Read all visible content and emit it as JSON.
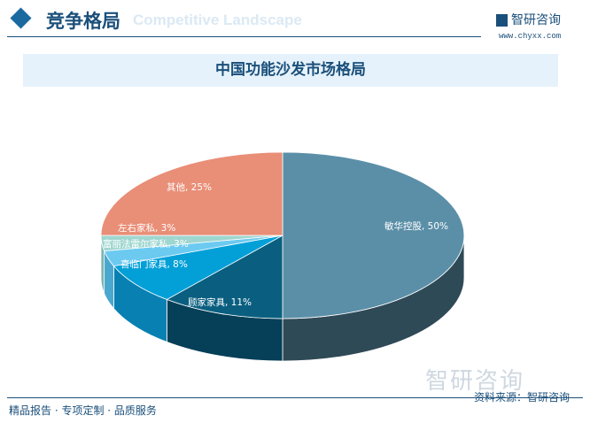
{
  "header": {
    "title": "竞争格局",
    "subtitle_en": "Competitive Landscape",
    "logo_text": "智研咨询",
    "url": "www.chyxx.com"
  },
  "chart_data": {
    "type": "pie",
    "title": "中国功能沙发市场格局",
    "slices": [
      {
        "label": "敏华控股",
        "value": 50,
        "text": "敏华控股, 50%",
        "color": "#5b8fa8",
        "side": "#2f4a57"
      },
      {
        "label": "顾家家具",
        "value": 11,
        "text": "顾家家具, 11%",
        "color": "#0a5f80",
        "side": "#053f58"
      },
      {
        "label": "喜临门家具",
        "value": 8,
        "text": "喜临门家具, 8%",
        "color": "#03a0d8",
        "side": "#0880b2"
      },
      {
        "label": "富丽法雷尔家私",
        "value": 3,
        "text": "富丽法雷尔家私, 3%",
        "color": "#6ccaf0",
        "side": "#4aa7cf"
      },
      {
        "label": "左右家私",
        "value": 3,
        "text": "左右家私, 3%",
        "color": "#9fd6d0",
        "side": "#7bb5ae"
      },
      {
        "label": "其他",
        "value": 25,
        "text": "其他, 25%",
        "color": "#e98e77",
        "side": "#b86c59"
      }
    ]
  },
  "footer": {
    "tagline": "精品报告 · 专项定制 · 品质服务",
    "source": "资料来源：智研咨询",
    "watermark": "智研咨询"
  }
}
